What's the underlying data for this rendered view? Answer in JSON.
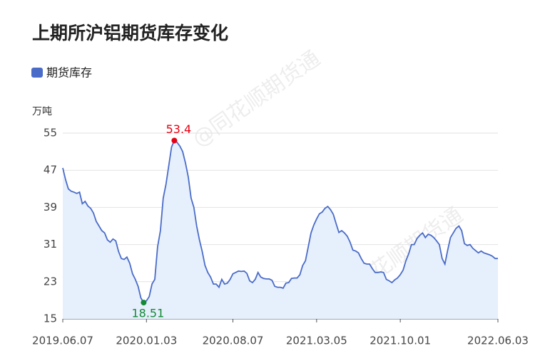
{
  "chart_data": {
    "type": "line",
    "title": "上期所沪铝期货库存变化",
    "y_unit": "万吨",
    "watermark": "@同花顺期货通",
    "categories": [
      "2019.06.07",
      null,
      null,
      null,
      null,
      null,
      null,
      null,
      null,
      null,
      null,
      null,
      null,
      null,
      null,
      null,
      null,
      null,
      null,
      null,
      null,
      null,
      null,
      null,
      null,
      null,
      null,
      null,
      null,
      null,
      "2020.01.03",
      null,
      null,
      null,
      null,
      null,
      null,
      null,
      null,
      null,
      null,
      null,
      null,
      null,
      null,
      null,
      null,
      null,
      null,
      null,
      null,
      null,
      null,
      null,
      null,
      null,
      null,
      null,
      null,
      null,
      null,
      "2020.08.07",
      null,
      null,
      null,
      null,
      null,
      null,
      null,
      null,
      null,
      null,
      null,
      null,
      null,
      null,
      null,
      null,
      null,
      null,
      null,
      null,
      null,
      null,
      null,
      null,
      null,
      null,
      null,
      null,
      null,
      "2021.03.05",
      null,
      null,
      null,
      null,
      null,
      null,
      null,
      null,
      null,
      null,
      null,
      null,
      null,
      null,
      null,
      null,
      null,
      null,
      null,
      null,
      null,
      null,
      null,
      null,
      null,
      null,
      null,
      null,
      null,
      "2021.10.01",
      null,
      null,
      null,
      null,
      null,
      null,
      null,
      null,
      null,
      null,
      null,
      null,
      null,
      null,
      null,
      null,
      null,
      null,
      null,
      null,
      null,
      null,
      null,
      null,
      null,
      null,
      null,
      null,
      null,
      null,
      null,
      null,
      null,
      null,
      "2022.06.03"
    ],
    "series": [
      {
        "name": "期货库存",
        "color": "#4a6cc8",
        "fill": "#e6effc",
        "values": [
          47.5,
          45,
          43,
          42.5,
          42.3,
          42,
          42.3,
          39.8,
          40.3,
          39.3,
          38.8,
          37.8,
          36,
          35,
          34,
          33.5,
          32,
          31.5,
          32.2,
          31.8,
          29.5,
          28,
          27.8,
          28.3,
          27,
          24.7,
          23.5,
          22,
          19.5,
          18.51,
          18.9,
          19.8,
          22.5,
          23.5,
          30.5,
          34,
          41,
          44,
          48,
          52,
          53.4,
          53,
          52.2,
          51,
          48.5,
          45.5,
          41,
          39,
          35,
          32,
          29.5,
          26.5,
          25,
          24,
          22.5,
          22.5,
          21.8,
          23.5,
          22.5,
          22.7,
          23.5,
          24.7,
          25,
          25.3,
          25.2,
          25.3,
          24.8,
          23.2,
          22.8,
          23.5,
          25,
          24,
          23.7,
          23.6,
          23.6,
          23.3,
          22,
          21.8,
          21.8,
          21.6,
          22.7,
          22.8,
          23.7,
          23.8,
          23.8,
          24.5,
          26.5,
          27.5,
          30.5,
          33.5,
          35.2,
          36.5,
          37.6,
          38,
          38.8,
          39.2,
          38.5,
          37.5,
          35.5,
          33.6,
          34,
          33.5,
          32.8,
          31.5,
          29.8,
          29.6,
          29.2,
          28,
          27,
          26.8,
          26.8,
          25.8,
          25,
          25,
          25.1,
          25,
          23.5,
          23.2,
          22.8,
          23.4,
          23.8,
          24.5,
          25.5,
          27.5,
          29,
          31,
          31,
          32.3,
          33,
          33.5,
          32.5,
          33.2,
          33,
          32.5,
          31.8,
          31,
          28,
          26.8,
          29.8,
          32.5,
          33.5,
          34.5,
          35,
          34,
          31.2,
          30.8,
          31,
          30.2,
          29.7,
          29.2,
          29.6,
          29.2,
          29,
          28.8,
          28.5,
          28,
          28
        ]
      }
    ],
    "max_color": "#e60012",
    "min_color": "#138a36",
    "ylim": [
      15,
      55
    ],
    "yticks": [
      15,
      23,
      31,
      39,
      47,
      55
    ],
    "grid": true
  }
}
